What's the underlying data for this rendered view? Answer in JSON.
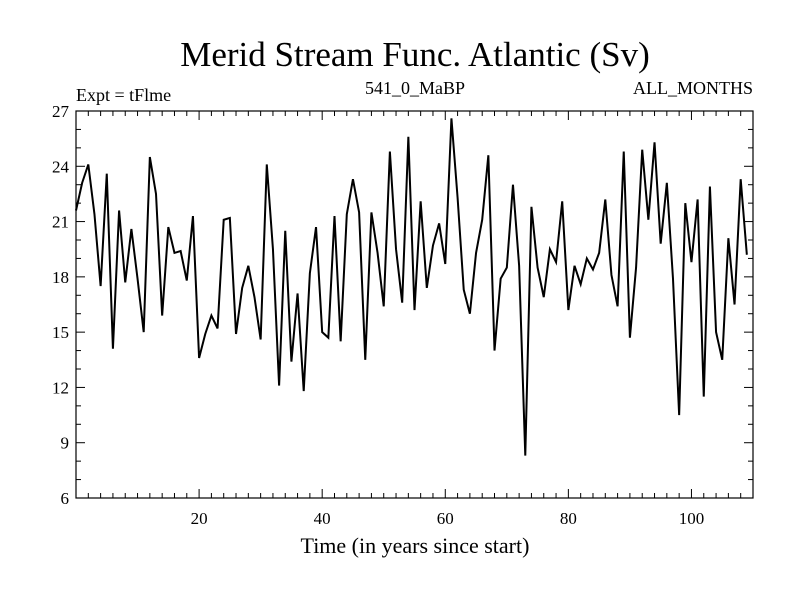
{
  "chart_data": {
    "type": "line",
    "title": "Merid Stream Func. Atlantic (Sv)",
    "subtitle_left": "Expt = tFlme",
    "subtitle_center": "541_0_MaBP",
    "subtitle_right": "ALL_MONTHS",
    "xlabel": "Time (in years since start)",
    "ylabel": "",
    "xlim": [
      0,
      110
    ],
    "ylim": [
      6,
      27
    ],
    "x_ticks": [
      20,
      40,
      60,
      80,
      100
    ],
    "y_ticks": [
      6,
      9,
      12,
      15,
      18,
      21,
      24,
      27
    ],
    "grid": false,
    "series": [
      {
        "name": "Merid Stream Func. Atlantic",
        "x_start": 0,
        "x_step": 1,
        "values": [
          21.6,
          23.1,
          24.1,
          21.4,
          17.5,
          23.6,
          14.1,
          21.6,
          17.7,
          20.6,
          17.9,
          15.0,
          24.5,
          22.5,
          15.9,
          20.7,
          19.3,
          19.4,
          17.8,
          21.3,
          13.6,
          14.9,
          15.9,
          15.2,
          21.1,
          21.2,
          14.9,
          17.4,
          18.6,
          16.9,
          14.6,
          24.1,
          19.5,
          12.1,
          20.5,
          13.4,
          17.1,
          11.8,
          18.2,
          20.7,
          15.0,
          14.7,
          21.3,
          14.5,
          21.4,
          23.3,
          21.5,
          13.5,
          21.5,
          19.3,
          16.4,
          24.8,
          19.5,
          16.6,
          25.6,
          16.2,
          22.1,
          17.4,
          19.7,
          20.9,
          18.7,
          26.6,
          22.3,
          17.3,
          16.0,
          19.3,
          21.1,
          24.6,
          14.0,
          17.9,
          18.5,
          23.0,
          18.6,
          8.3,
          21.8,
          18.5,
          16.9,
          19.5,
          18.8,
          22.1,
          16.2,
          18.6,
          17.6,
          19.0,
          18.4,
          19.3,
          22.2,
          18.1,
          16.4,
          24.8,
          14.7,
          18.5,
          24.9,
          21.1,
          25.3,
          19.8,
          23.1,
          17.9,
          10.5,
          22.0,
          18.8,
          22.2,
          11.5,
          22.9,
          15.0,
          13.5,
          20.1,
          16.5,
          23.3,
          19.2
        ]
      }
    ]
  }
}
